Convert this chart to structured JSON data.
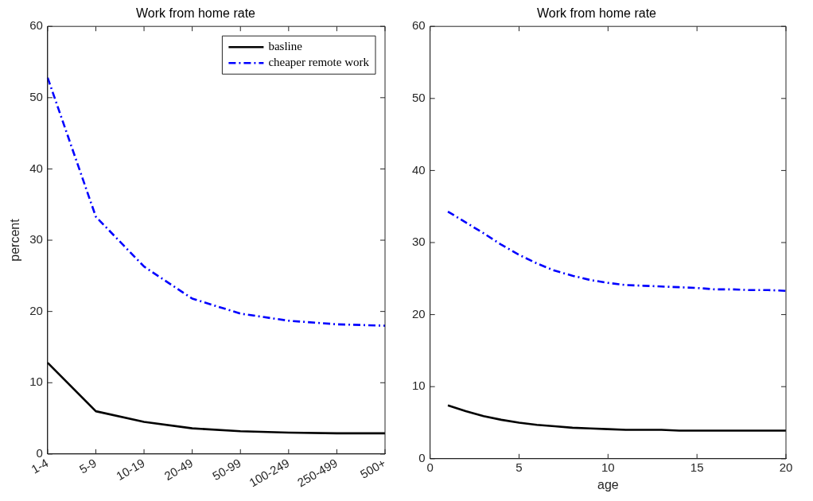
{
  "chart_data": [
    {
      "type": "line",
      "title": "Work from home rate",
      "ylabel": "percent",
      "categories": [
        "1-4",
        "5-9",
        "10-19",
        "20-49",
        "50-99",
        "100-249",
        "250-499",
        "500+"
      ],
      "ylim": [
        0,
        60
      ],
      "yticks": [
        0,
        10,
        20,
        30,
        40,
        50,
        60
      ],
      "legend": "top right",
      "grid": false,
      "series": [
        {
          "name": "basline",
          "color": "#000000",
          "line_style": "solid",
          "values": [
            12.8,
            6.0,
            4.5,
            3.6,
            3.2,
            3.0,
            2.9,
            2.9
          ]
        },
        {
          "name": "cheaper remote work",
          "color": "#0000ff",
          "line_style": "dashed",
          "values": [
            52.8,
            33.3,
            26.3,
            21.8,
            19.7,
            18.7,
            18.2,
            18.0
          ]
        }
      ]
    },
    {
      "type": "line",
      "title": "Work from home rate",
      "xlabel": "age",
      "x": [
        1,
        2,
        3,
        4,
        5,
        6,
        7,
        8,
        9,
        10,
        11,
        12,
        13,
        14,
        15,
        16,
        17,
        18,
        19,
        20
      ],
      "xlim": [
        0,
        20
      ],
      "xticks": [
        0,
        5,
        10,
        15,
        20
      ],
      "ylim": [
        0,
        60
      ],
      "yticks": [
        0,
        10,
        20,
        30,
        40,
        50,
        60
      ],
      "grid": false,
      "series": [
        {
          "color": "#000000",
          "line_style": "solid",
          "values": [
            7.4,
            6.6,
            5.9,
            5.4,
            5.0,
            4.7,
            4.5,
            4.3,
            4.2,
            4.1,
            4.0,
            4.0,
            4.0,
            3.9,
            3.9,
            3.9,
            3.9,
            3.9,
            3.9,
            3.9
          ]
        },
        {
          "color": "#0000ff",
          "line_style": "dashed",
          "values": [
            34.3,
            32.8,
            31.3,
            29.7,
            28.3,
            27.1,
            26.1,
            25.4,
            24.8,
            24.4,
            24.1,
            24.0,
            23.9,
            23.8,
            23.7,
            23.5,
            23.5,
            23.4,
            23.4,
            23.3
          ]
        }
      ]
    }
  ]
}
